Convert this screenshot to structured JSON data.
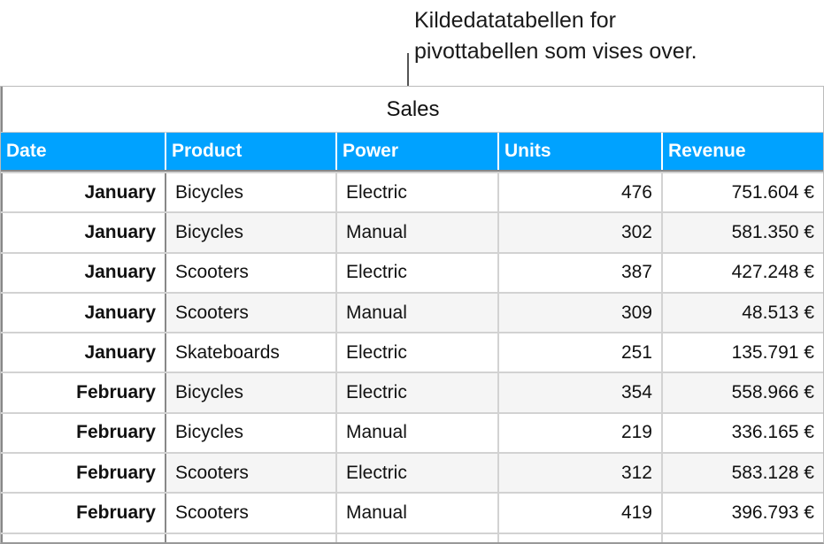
{
  "callout": {
    "line1": "Kildedatatabellen for",
    "line2": "pivottabellen som vises over."
  },
  "table": {
    "title": "Sales",
    "headers": [
      "Date",
      "Product",
      "Power",
      "Units",
      "Revenue"
    ],
    "rows": [
      [
        "January",
        "Bicycles",
        "Electric",
        "476",
        "751.604 €"
      ],
      [
        "January",
        "Bicycles",
        "Manual",
        "302",
        "581.350 €"
      ],
      [
        "January",
        "Scooters",
        "Electric",
        "387",
        "427.248 €"
      ],
      [
        "January",
        "Scooters",
        "Manual",
        "309",
        "48.513 €"
      ],
      [
        "January",
        "Skateboards",
        "Electric",
        "251",
        "135.791 €"
      ],
      [
        "February",
        "Bicycles",
        "Electric",
        "354",
        "558.966 €"
      ],
      [
        "February",
        "Bicycles",
        "Manual",
        "219",
        "336.165 €"
      ],
      [
        "February",
        "Scooters",
        "Electric",
        "312",
        "583.128 €"
      ],
      [
        "February",
        "Scooters",
        "Manual",
        "419",
        "396.793 €"
      ]
    ]
  },
  "colors": {
    "header": "#00a2ff",
    "alt_row": "#f5f5f5"
  }
}
